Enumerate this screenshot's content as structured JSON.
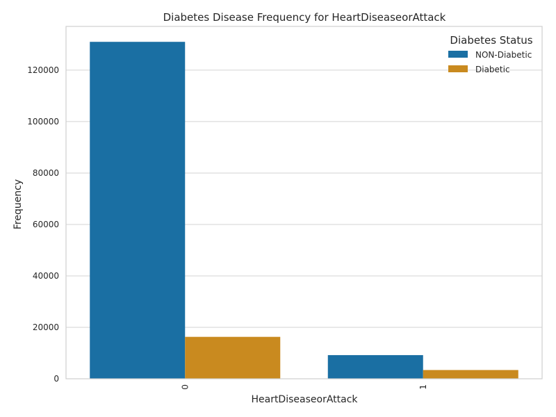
{
  "chart_data": {
    "type": "bar",
    "title": "Diabetes Disease Frequency for HeartDiseaseorAttack",
    "xlabel": "HeartDiseaseorAttack",
    "ylabel": "Frequency",
    "categories": [
      "0",
      "1"
    ],
    "series": [
      {
        "name": "NON-Diabetic",
        "values": [
          131000,
          9200
        ],
        "color": "#1a6fa3"
      },
      {
        "name": "Diabetic",
        "values": [
          16300,
          3400
        ],
        "color": "#c98a1f"
      }
    ],
    "ylim": [
      0,
      137000
    ],
    "yticks": [
      0,
      20000,
      40000,
      60000,
      80000,
      100000,
      120000
    ],
    "ytick_labels": [
      "0",
      "20000",
      "40000",
      "60000",
      "80000",
      "100000",
      "120000"
    ],
    "legend": {
      "title": "Diabetes Status",
      "position": "top-right"
    },
    "grid": true,
    "xtick_rotation": "vertical"
  }
}
